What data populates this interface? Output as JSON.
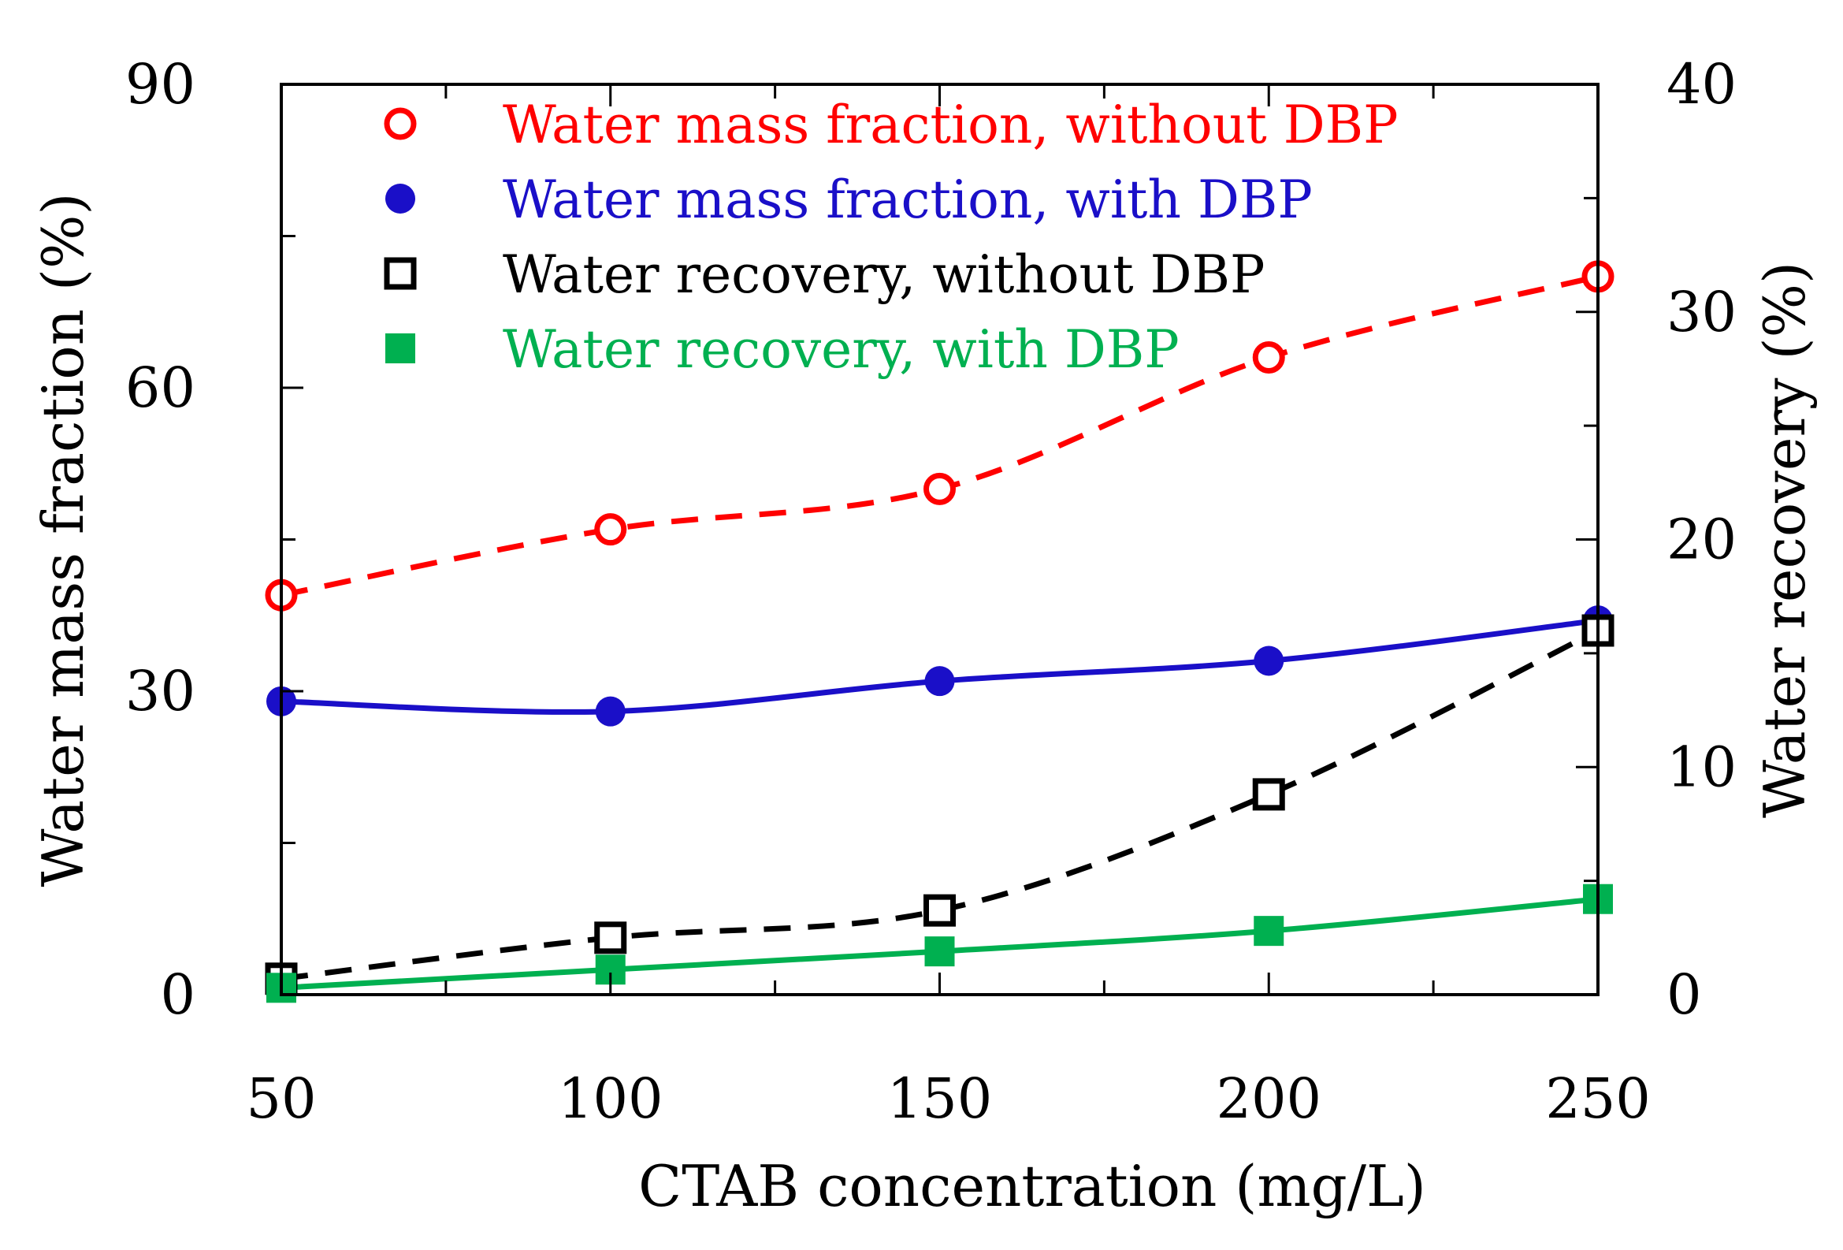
{
  "chart_data": {
    "type": "scatter",
    "xlabel": "CTAB concentration (mg/L)",
    "ylabel_left": "Water mass fraction (%)",
    "ylabel_right": "Water recovery (%)",
    "xlim": [
      50,
      250
    ],
    "ylim_left": [
      0,
      90
    ],
    "ylim_right": [
      0,
      40
    ],
    "xticks": [
      50,
      100,
      150,
      200,
      250
    ],
    "xtick_labels": [
      "50",
      "100",
      "150",
      "200",
      "250"
    ],
    "yticks_left": [
      0,
      30,
      60,
      90
    ],
    "ytick_labels_left": [
      "0",
      "30",
      "60",
      "90"
    ],
    "yticks_right": [
      0,
      10,
      20,
      30,
      40
    ],
    "ytick_labels_right": [
      "0",
      "10",
      "20",
      "30",
      "40"
    ],
    "legend_position": "top-left",
    "series": [
      {
        "name": "Water mass fraction, without DBP",
        "axis": "left",
        "color": "#ff0000",
        "marker": "open-circle",
        "line": "dashed",
        "x": [
          50,
          100,
          150,
          200,
          250
        ],
        "y": [
          39.5,
          46,
          50,
          63,
          71
        ]
      },
      {
        "name": "Water mass fraction, with DBP",
        "axis": "left",
        "color": "#1a0fc8",
        "marker": "filled-circle",
        "line": "solid",
        "x": [
          50,
          100,
          150,
          200,
          250
        ],
        "y": [
          29,
          28,
          31,
          33,
          37
        ]
      },
      {
        "name": "Water recovery, without DBP",
        "axis": "right",
        "color": "#000000",
        "marker": "open-square",
        "line": "dashed",
        "x": [
          50,
          100,
          150,
          200,
          250
        ],
        "y": [
          0.7,
          2.5,
          3.7,
          8.8,
          16
        ]
      },
      {
        "name": "Water recovery, with DBP",
        "axis": "right",
        "color": "#00b050",
        "marker": "filled-square",
        "line": "solid",
        "x": [
          50,
          100,
          150,
          200,
          250
        ],
        "y": [
          0.3,
          1.1,
          1.9,
          2.8,
          4.2
        ]
      }
    ]
  }
}
